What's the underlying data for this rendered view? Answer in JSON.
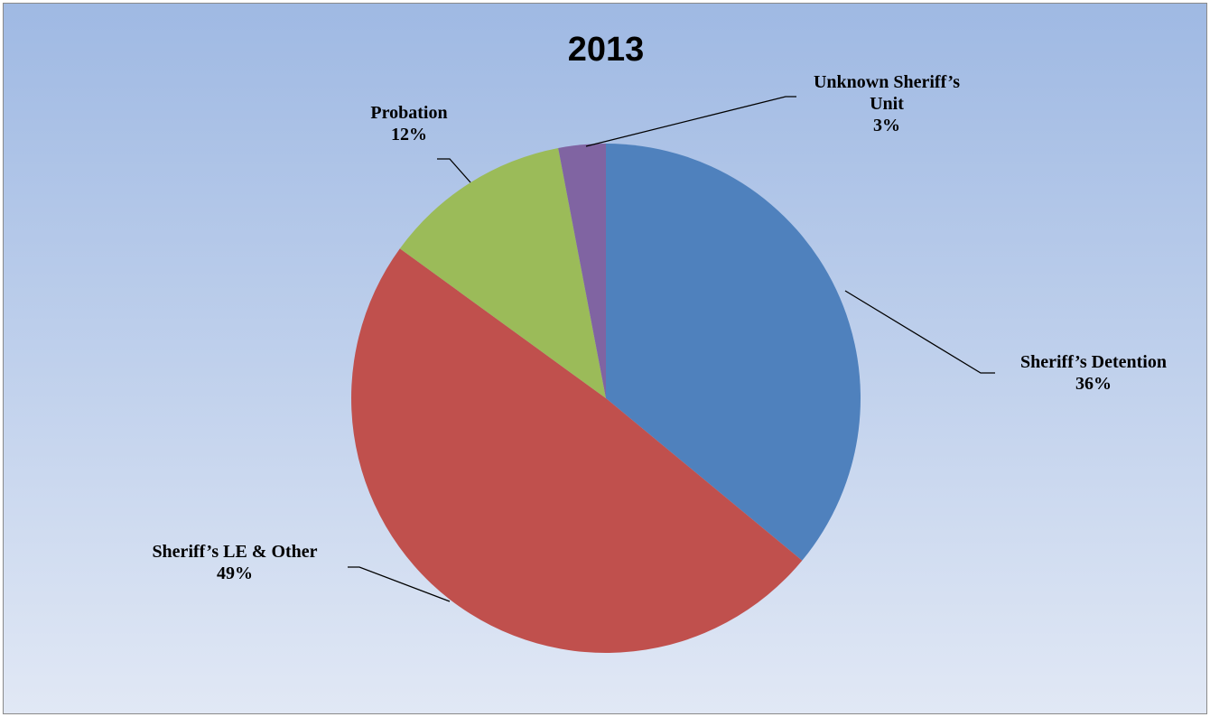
{
  "chart_data": {
    "type": "pie",
    "title": "2013",
    "start_angle_deg": 0,
    "direction": "clockwise",
    "slices": [
      {
        "label": "Sheriff’s Detention",
        "percent_label": "36%",
        "value": 36,
        "color": "#4f81bd"
      },
      {
        "label": "Sheriff’s LE & Other",
        "percent_label": "49%",
        "value": 49,
        "color": "#c0504d"
      },
      {
        "label": "Probation",
        "percent_label": "12%",
        "value": 12,
        "color": "#9bbb59"
      },
      {
        "label": "Unknown Sheriff’s Unit",
        "percent_label": "3%",
        "value": 3,
        "color": "#8064a2"
      }
    ],
    "legend": "none"
  }
}
